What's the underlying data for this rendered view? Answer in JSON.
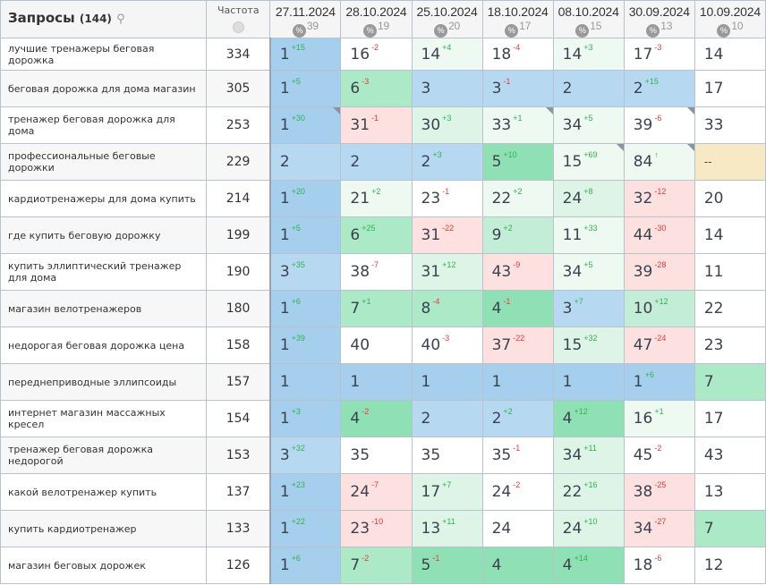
{
  "header": {
    "queries_label": "Запросы",
    "queries_count": "(144)",
    "frequency_label": "Частота"
  },
  "dates": [
    {
      "date": "27.11.2024",
      "pct": "39"
    },
    {
      "date": "28.10.2024",
      "pct": "19"
    },
    {
      "date": "25.10.2024",
      "pct": "20"
    },
    {
      "date": "18.10.2024",
      "pct": "17"
    },
    {
      "date": "08.10.2024",
      "pct": "15"
    },
    {
      "date": "30.09.2024",
      "pct": "13"
    },
    {
      "date": "10.09.2024",
      "pct": "10"
    }
  ],
  "pct_icon": "%",
  "rows": [
    {
      "q": "лучшие тренажеры беговая дорожка",
      "f": "334",
      "cells": [
        [
          "1",
          "+15",
          "b1"
        ],
        [
          "16",
          "-2",
          "w"
        ],
        [
          "14",
          "+4",
          "g0"
        ],
        [
          "18",
          "-4",
          "w"
        ],
        [
          "14",
          "+3",
          "g0"
        ],
        [
          "17",
          "-3",
          "w"
        ],
        [
          "14",
          "",
          "w"
        ]
      ]
    },
    {
      "q": "беговая дорожка для дома магазин",
      "f": "305",
      "cells": [
        [
          "1",
          "+5",
          "b1"
        ],
        [
          "6",
          "-3",
          "g2"
        ],
        [
          "3",
          "",
          "b2"
        ],
        [
          "3",
          "-1",
          "b2"
        ],
        [
          "2",
          "",
          "b2"
        ],
        [
          "2",
          "+15",
          "b2"
        ],
        [
          "17",
          "",
          "w"
        ]
      ]
    },
    {
      "q": "тренажер беговая дорожка для дома",
      "f": "253",
      "cells": [
        [
          "1",
          "+30",
          "b1",
          1
        ],
        [
          "31",
          "-1",
          "r"
        ],
        [
          "30",
          "+3",
          "g1"
        ],
        [
          "33",
          "+1",
          "g0",
          1
        ],
        [
          "34",
          "+5",
          "g0"
        ],
        [
          "39",
          "-6",
          "w",
          1
        ],
        [
          "33",
          "",
          "w"
        ]
      ]
    },
    {
      "q": "профессиональные беговые дорожки",
      "f": "229",
      "cells": [
        [
          "2",
          "",
          "b2"
        ],
        [
          "2",
          "",
          "b2"
        ],
        [
          "2",
          "+3",
          "b2"
        ],
        [
          "5",
          "+10",
          "g3"
        ],
        [
          "15",
          "+69",
          "g0",
          1
        ],
        [
          "84",
          "↑",
          "g0",
          1
        ],
        [
          "--",
          "",
          "y"
        ]
      ]
    },
    {
      "q": "кардиотренажеры для дома купить",
      "f": "214",
      "cells": [
        [
          "1",
          "+20",
          "b1"
        ],
        [
          "21",
          "+2",
          "g0"
        ],
        [
          "23",
          "-1",
          "w"
        ],
        [
          "22",
          "+2",
          "g0"
        ],
        [
          "24",
          "+8",
          "g1"
        ],
        [
          "32",
          "-12",
          "r"
        ],
        [
          "20",
          "",
          "w"
        ]
      ]
    },
    {
      "q": "где купить беговую дорожку",
      "f": "199",
      "cells": [
        [
          "1",
          "+5",
          "b1"
        ],
        [
          "6",
          "+25",
          "g2"
        ],
        [
          "31",
          "-22",
          "r"
        ],
        [
          "9",
          "+2",
          "g15"
        ],
        [
          "11",
          "+33",
          "g0"
        ],
        [
          "44",
          "-30",
          "r"
        ],
        [
          "14",
          "",
          "w"
        ]
      ]
    },
    {
      "q": "купить эллиптический тренажер для дома",
      "f": "190",
      "cells": [
        [
          "3",
          "+35",
          "b2"
        ],
        [
          "38",
          "-7",
          "w"
        ],
        [
          "31",
          "+12",
          "g1"
        ],
        [
          "43",
          "-9",
          "r"
        ],
        [
          "34",
          "+5",
          "g0"
        ],
        [
          "39",
          "-28",
          "r"
        ],
        [
          "11",
          "",
          "w"
        ]
      ]
    },
    {
      "q": "магазин велотренажеров",
      "f": "180",
      "cells": [
        [
          "1",
          "+6",
          "b1"
        ],
        [
          "7",
          "+1",
          "g2"
        ],
        [
          "8",
          "-4",
          "g2"
        ],
        [
          "4",
          "-1",
          "g3"
        ],
        [
          "3",
          "+7",
          "b2"
        ],
        [
          "10",
          "+12",
          "g15"
        ],
        [
          "22",
          "",
          "w"
        ]
      ]
    },
    {
      "q": "недорогая беговая дорожка цена",
      "f": "158",
      "cells": [
        [
          "1",
          "+39",
          "b1"
        ],
        [
          "40",
          "",
          "w"
        ],
        [
          "40",
          "-3",
          "w"
        ],
        [
          "37",
          "-22",
          "r"
        ],
        [
          "15",
          "+32",
          "g1"
        ],
        [
          "47",
          "-24",
          "r"
        ],
        [
          "23",
          "",
          "w"
        ]
      ]
    },
    {
      "q": "переднеприводные эллипсоиды",
      "f": "157",
      "cells": [
        [
          "1",
          "",
          "b1"
        ],
        [
          "1",
          "",
          "b1"
        ],
        [
          "1",
          "",
          "b1"
        ],
        [
          "1",
          "",
          "b1"
        ],
        [
          "1",
          "",
          "b1"
        ],
        [
          "1",
          "+6",
          "b1"
        ],
        [
          "7",
          "",
          "g2"
        ]
      ]
    },
    {
      "q": "интернет магазин массажных кресел",
      "f": "154",
      "cells": [
        [
          "1",
          "+3",
          "b1"
        ],
        [
          "4",
          "-2",
          "g3"
        ],
        [
          "2",
          "",
          "b2"
        ],
        [
          "2",
          "+2",
          "b2"
        ],
        [
          "4",
          "+12",
          "g3"
        ],
        [
          "16",
          "+1",
          "g0"
        ],
        [
          "17",
          "",
          "w"
        ]
      ]
    },
    {
      "q": "тренажер беговая дорожка недорогой",
      "f": "153",
      "cells": [
        [
          "3",
          "+32",
          "b2"
        ],
        [
          "35",
          "",
          "w"
        ],
        [
          "35",
          "",
          "w"
        ],
        [
          "35",
          "-1",
          "w"
        ],
        [
          "34",
          "+11",
          "g1"
        ],
        [
          "45",
          "-2",
          "w"
        ],
        [
          "43",
          "",
          "w"
        ]
      ]
    },
    {
      "q": "какой велотренажер купить",
      "f": "137",
      "cells": [
        [
          "1",
          "+23",
          "b1"
        ],
        [
          "24",
          "-7",
          "r"
        ],
        [
          "17",
          "+7",
          "g1"
        ],
        [
          "24",
          "-2",
          "w"
        ],
        [
          "22",
          "+16",
          "g1"
        ],
        [
          "38",
          "-25",
          "r"
        ],
        [
          "13",
          "",
          "w"
        ]
      ]
    },
    {
      "q": "купить кардиотренажер",
      "f": "133",
      "cells": [
        [
          "1",
          "+22",
          "b1"
        ],
        [
          "23",
          "-10",
          "r"
        ],
        [
          "13",
          "+11",
          "g1"
        ],
        [
          "24",
          "",
          "w"
        ],
        [
          "24",
          "+10",
          "g1"
        ],
        [
          "34",
          "-27",
          "r"
        ],
        [
          "7",
          "",
          "g2"
        ]
      ]
    },
    {
      "q": "магазин беговых дорожек",
      "f": "126",
      "cells": [
        [
          "1",
          "+6",
          "b1"
        ],
        [
          "7",
          "-2",
          "g2"
        ],
        [
          "5",
          "-1",
          "g3"
        ],
        [
          "4",
          "",
          "g3"
        ],
        [
          "4",
          "+14",
          "g3"
        ],
        [
          "18",
          "-6",
          "w"
        ],
        [
          "12",
          "",
          "w"
        ]
      ]
    }
  ]
}
